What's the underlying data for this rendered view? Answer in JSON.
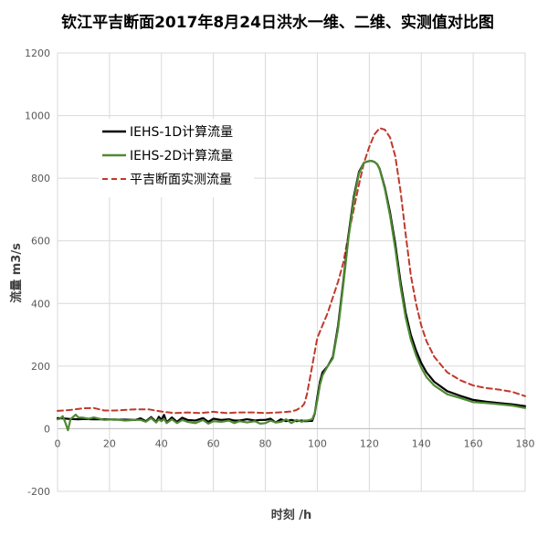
{
  "chart_data": {
    "type": "line",
    "title": "钦江平吉断面2017年8月24日洪水一维、二维、实测值对比图",
    "xlabel": "时刻 /h",
    "ylabel": "流量 m3/s",
    "xlim": [
      0,
      180
    ],
    "ylim": [
      -200,
      1200
    ],
    "xticks": [
      0,
      20,
      40,
      60,
      80,
      100,
      120,
      140,
      160,
      180
    ],
    "yticks": [
      -200,
      0,
      200,
      400,
      600,
      800,
      1000,
      1200
    ],
    "grid": true,
    "legend_position": "top-left",
    "series": [
      {
        "name": "IEHS-1D计算流量",
        "color": "#000000",
        "dash": "solid",
        "x": [
          0,
          2,
          5,
          8,
          10,
          14,
          18,
          22,
          26,
          30,
          32,
          34,
          36,
          38,
          39,
          40,
          41,
          42,
          44,
          46,
          48,
          50,
          53,
          56,
          58,
          60,
          63,
          66,
          68,
          70,
          73,
          76,
          78,
          80,
          82,
          84,
          86,
          88,
          90,
          92,
          94,
          95,
          96,
          97,
          98,
          99,
          100,
          101,
          102,
          104,
          106,
          108,
          110,
          112,
          114,
          116,
          118,
          120,
          121,
          122,
          123,
          124,
          126,
          128,
          130,
          132,
          134,
          136,
          138,
          140,
          142,
          145,
          150,
          155,
          160,
          165,
          170,
          175,
          180
        ],
        "y": [
          34,
          33,
          31,
          30,
          31,
          30,
          30,
          29,
          29,
          28,
          33,
          24,
          37,
          22,
          38,
          28,
          44,
          20,
          36,
          22,
          35,
          28,
          26,
          34,
          22,
          32,
          28,
          30,
          26,
          26,
          30,
          26,
          28,
          28,
          32,
          20,
          30,
          24,
          28,
          24,
          26,
          24,
          24,
          25,
          25,
          48,
          100,
          150,
          180,
          200,
          230,
          330,
          470,
          620,
          740,
          820,
          850,
          855,
          855,
          852,
          845,
          830,
          770,
          690,
          590,
          470,
          370,
          300,
          250,
          210,
          180,
          150,
          120,
          105,
          92,
          86,
          82,
          78,
          72
        ]
      },
      {
        "name": "IEHS-2D计算流量",
        "color": "#4f8a32",
        "dash": "solid",
        "x": [
          0,
          1,
          2,
          3,
          4,
          5,
          6,
          7,
          8,
          10,
          12,
          14,
          18,
          22,
          26,
          30,
          32,
          34,
          36,
          38,
          39,
          40,
          41,
          42,
          44,
          46,
          48,
          50,
          53,
          56,
          58,
          60,
          63,
          66,
          68,
          70,
          73,
          76,
          78,
          80,
          82,
          84,
          86,
          88,
          90,
          92,
          94,
          95,
          96,
          97,
          98,
          99,
          100,
          101,
          102,
          104,
          106,
          108,
          110,
          112,
          114,
          116,
          118,
          120,
          121,
          122,
          123,
          124,
          126,
          128,
          130,
          132,
          134,
          136,
          138,
          140,
          142,
          145,
          150,
          155,
          160,
          165,
          170,
          175,
          180
        ],
        "y": [
          30,
          32,
          40,
          20,
          -5,
          30,
          38,
          45,
          36,
          35,
          32,
          36,
          28,
          30,
          26,
          28,
          28,
          22,
          34,
          20,
          30,
          24,
          32,
          18,
          30,
          18,
          28,
          22,
          18,
          28,
          16,
          24,
          22,
          26,
          18,
          24,
          20,
          24,
          16,
          18,
          26,
          20,
          22,
          30,
          18,
          28,
          22,
          26,
          26,
          28,
          30,
          50,
          90,
          140,
          170,
          200,
          225,
          320,
          460,
          610,
          730,
          815,
          850,
          855,
          855,
          852,
          845,
          828,
          765,
          680,
          575,
          455,
          355,
          285,
          235,
          195,
          165,
          138,
          110,
          98,
          85,
          82,
          78,
          74,
          66
        ]
      },
      {
        "name": "平吉断面实测流量",
        "color": "#c0392b",
        "dash": "dashed",
        "x": [
          0,
          5,
          10,
          14,
          18,
          22,
          26,
          30,
          35,
          40,
          45,
          50,
          55,
          60,
          65,
          70,
          75,
          80,
          85,
          90,
          92,
          94,
          95,
          96,
          98,
          100,
          102,
          104,
          106,
          108,
          110,
          112,
          114,
          116,
          118,
          120,
          122,
          124,
          126,
          128,
          130,
          132,
          134,
          136,
          138,
          140,
          142,
          145,
          150,
          155,
          160,
          165,
          170,
          175,
          180
        ],
        "y": [
          57,
          60,
          65,
          66,
          58,
          58,
          60,
          62,
          62,
          55,
          50,
          52,
          50,
          54,
          50,
          52,
          52,
          50,
          52,
          55,
          60,
          70,
          80,
          110,
          200,
          290,
          330,
          370,
          420,
          470,
          530,
          620,
          700,
          780,
          850,
          900,
          940,
          960,
          955,
          930,
          870,
          760,
          620,
          490,
          400,
          330,
          280,
          230,
          180,
          155,
          138,
          130,
          125,
          118,
          104
        ]
      }
    ]
  }
}
